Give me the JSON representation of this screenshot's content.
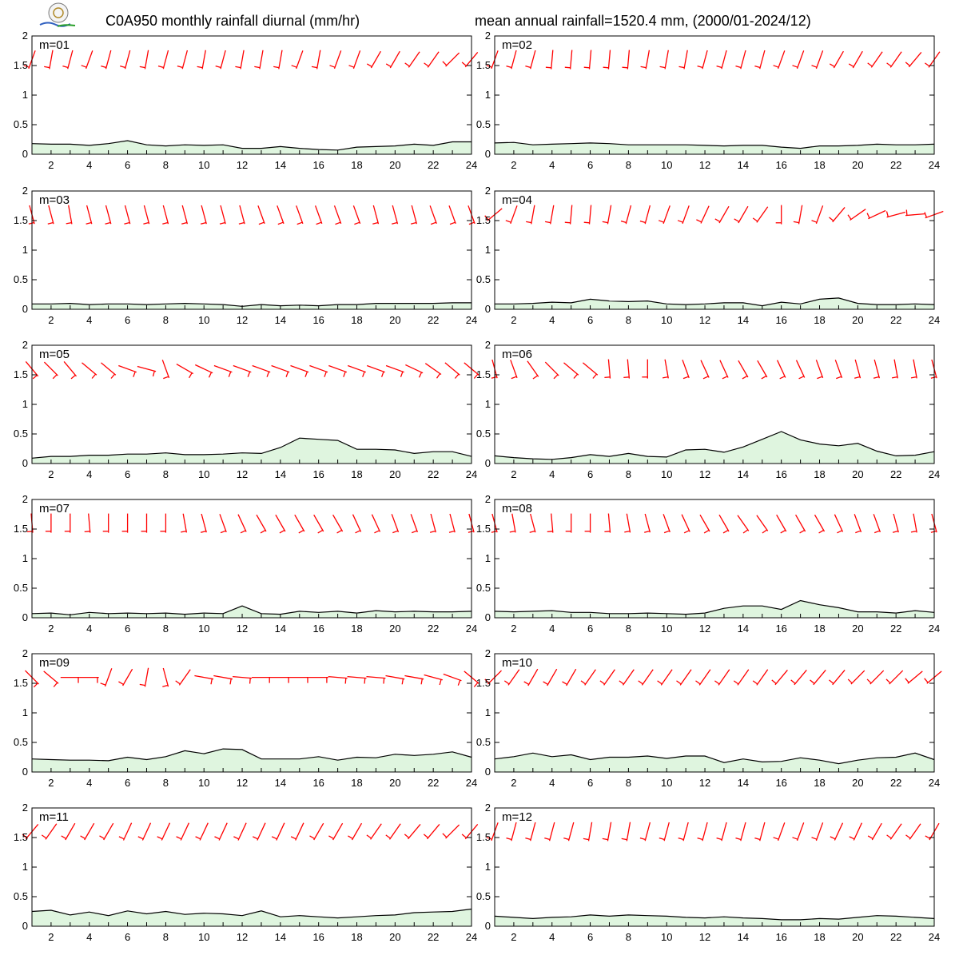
{
  "figure": {
    "title_left": "C0A950 monthly rainfall diurnal (mm/hr)",
    "title_right": "mean annual rainfall=1520.4 mm, (2000/01-2024/12)",
    "logo": {
      "icon": "lab-logo-icon"
    },
    "colors": {
      "rain_fill": "#dff5df",
      "rain_line": "#000000",
      "wind_barb": "#ff0000",
      "frame": "#000000"
    }
  },
  "chart_data": {
    "type": "area",
    "xlim": [
      1,
      24
    ],
    "ylim": [
      0,
      2
    ],
    "xticks": [
      "2",
      "4",
      "6",
      "8",
      "10",
      "12",
      "14",
      "16",
      "18",
      "20",
      "22",
      "24"
    ],
    "yticks": [
      "0",
      "0.5",
      "1",
      "1.5",
      "2"
    ],
    "grid": false,
    "panels": [
      {
        "label": "m=01",
        "values": [
          0.18,
          0.17,
          0.17,
          0.15,
          0.18,
          0.23,
          0.16,
          0.14,
          0.16,
          0.15,
          0.16,
          0.1,
          0.1,
          0.13,
          0.1,
          0.08,
          0.07,
          0.12,
          0.13,
          0.14,
          0.17,
          0.15,
          0.21,
          0.21
        ],
        "wind_dir": [
          200,
          190,
          195,
          200,
          195,
          195,
          190,
          195,
          195,
          190,
          195,
          190,
          190,
          190,
          200,
          190,
          200,
          200,
          210,
          210,
          215,
          215,
          225,
          220
        ]
      },
      {
        "label": "m=02",
        "values": [
          0.19,
          0.2,
          0.16,
          0.17,
          0.18,
          0.19,
          0.18,
          0.16,
          0.16,
          0.16,
          0.16,
          0.15,
          0.14,
          0.15,
          0.15,
          0.12,
          0.1,
          0.14,
          0.14,
          0.15,
          0.17,
          0.16,
          0.16,
          0.17
        ],
        "wind_dir": [
          200,
          195,
          195,
          185,
          185,
          185,
          185,
          185,
          190,
          190,
          190,
          195,
          195,
          195,
          195,
          200,
          200,
          200,
          210,
          210,
          215,
          215,
          220,
          215
        ]
      },
      {
        "label": "m=03",
        "values": [
          0.09,
          0.09,
          0.1,
          0.08,
          0.09,
          0.09,
          0.08,
          0.09,
          0.1,
          0.09,
          0.08,
          0.05,
          0.08,
          0.06,
          0.07,
          0.06,
          0.08,
          0.08,
          0.1,
          0.1,
          0.1,
          0.1,
          0.11,
          0.11
        ],
        "wind_dir": [
          165,
          165,
          170,
          165,
          165,
          165,
          165,
          165,
          165,
          165,
          165,
          165,
          160,
          160,
          160,
          160,
          160,
          160,
          165,
          165,
          165,
          160,
          160,
          160
        ]
      },
      {
        "label": "m=04",
        "values": [
          0.09,
          0.09,
          0.1,
          0.12,
          0.11,
          0.17,
          0.14,
          0.13,
          0.14,
          0.09,
          0.08,
          0.09,
          0.11,
          0.11,
          0.06,
          0.12,
          0.09,
          0.17,
          0.19,
          0.1,
          0.08,
          0.08,
          0.09,
          0.08
        ],
        "wind_dir": [
          230,
          200,
          190,
          190,
          185,
          185,
          190,
          195,
          195,
          200,
          200,
          205,
          210,
          210,
          215,
          180,
          190,
          200,
          220,
          235,
          245,
          255,
          265,
          250
        ]
      },
      {
        "label": "m=05",
        "values": [
          0.09,
          0.12,
          0.12,
          0.14,
          0.14,
          0.16,
          0.16,
          0.18,
          0.15,
          0.15,
          0.16,
          0.18,
          0.17,
          0.27,
          0.43,
          0.41,
          0.39,
          0.24,
          0.24,
          0.23,
          0.17,
          0.2,
          0.2,
          0.12
        ],
        "wind_dir": [
          140,
          135,
          140,
          130,
          130,
          110,
          105,
          160,
          120,
          115,
          110,
          110,
          110,
          110,
          110,
          110,
          110,
          110,
          110,
          110,
          115,
          125,
          130,
          130
        ]
      },
      {
        "label": "m=06",
        "values": [
          0.13,
          0.1,
          0.08,
          0.07,
          0.1,
          0.15,
          0.12,
          0.17,
          0.12,
          0.11,
          0.23,
          0.24,
          0.19,
          0.28,
          0.41,
          0.54,
          0.4,
          0.33,
          0.3,
          0.34,
          0.21,
          0.13,
          0.14,
          0.2
        ],
        "wind_dir": [
          165,
          160,
          145,
          135,
          130,
          130,
          175,
          175,
          180,
          170,
          160,
          155,
          155,
          150,
          150,
          155,
          155,
          160,
          160,
          165,
          165,
          170,
          170,
          165
        ]
      },
      {
        "label": "m=07",
        "values": [
          0.07,
          0.08,
          0.05,
          0.09,
          0.07,
          0.08,
          0.07,
          0.08,
          0.06,
          0.08,
          0.07,
          0.2,
          0.07,
          0.06,
          0.11,
          0.09,
          0.11,
          0.08,
          0.12,
          0.1,
          0.11,
          0.1,
          0.1,
          0.11
        ],
        "wind_dir": [
          175,
          180,
          180,
          175,
          180,
          180,
          180,
          180,
          170,
          165,
          160,
          155,
          150,
          150,
          150,
          150,
          150,
          155,
          155,
          160,
          160,
          165,
          165,
          165
        ]
      },
      {
        "label": "m=08",
        "values": [
          0.11,
          0.1,
          0.11,
          0.12,
          0.09,
          0.09,
          0.07,
          0.07,
          0.08,
          0.07,
          0.06,
          0.08,
          0.16,
          0.2,
          0.2,
          0.14,
          0.29,
          0.22,
          0.17,
          0.1,
          0.1,
          0.08,
          0.12,
          0.09
        ],
        "wind_dir": [
          165,
          170,
          165,
          175,
          180,
          180,
          175,
          170,
          165,
          160,
          155,
          150,
          150,
          145,
          145,
          150,
          150,
          150,
          155,
          160,
          160,
          165,
          170,
          165
        ]
      },
      {
        "label": "m=09",
        "values": [
          0.22,
          0.21,
          0.2,
          0.2,
          0.19,
          0.25,
          0.21,
          0.26,
          0.36,
          0.31,
          0.39,
          0.38,
          0.22,
          0.22,
          0.22,
          0.26,
          0.2,
          0.25,
          0.24,
          0.3,
          0.28,
          0.3,
          0.34,
          0.25
        ],
        "wind_dir": [
          135,
          130,
          90,
          90,
          200,
          210,
          190,
          165,
          215,
          100,
          100,
          95,
          90,
          90,
          90,
          90,
          95,
          95,
          95,
          100,
          100,
          105,
          110,
          130
        ]
      },
      {
        "label": "m=10",
        "values": [
          0.22,
          0.26,
          0.32,
          0.26,
          0.29,
          0.21,
          0.25,
          0.25,
          0.27,
          0.23,
          0.27,
          0.27,
          0.16,
          0.22,
          0.17,
          0.18,
          0.24,
          0.2,
          0.14,
          0.2,
          0.24,
          0.25,
          0.32,
          0.21
        ],
        "wind_dir": [
          225,
          215,
          210,
          210,
          210,
          215,
          215,
          215,
          215,
          215,
          215,
          215,
          215,
          215,
          215,
          220,
          220,
          220,
          220,
          225,
          225,
          225,
          230,
          230
        ]
      },
      {
        "label": "m=11",
        "values": [
          0.25,
          0.27,
          0.19,
          0.24,
          0.18,
          0.26,
          0.21,
          0.25,
          0.2,
          0.22,
          0.21,
          0.18,
          0.26,
          0.16,
          0.18,
          0.16,
          0.14,
          0.16,
          0.18,
          0.19,
          0.23,
          0.24,
          0.25,
          0.29
        ],
        "wind_dir": [
          220,
          215,
          210,
          210,
          210,
          205,
          205,
          205,
          205,
          205,
          205,
          205,
          205,
          205,
          205,
          210,
          210,
          210,
          215,
          215,
          220,
          220,
          225,
          220
        ]
      },
      {
        "label": "m=12",
        "values": [
          0.17,
          0.15,
          0.13,
          0.15,
          0.16,
          0.19,
          0.17,
          0.19,
          0.18,
          0.17,
          0.15,
          0.14,
          0.16,
          0.14,
          0.13,
          0.11,
          0.11,
          0.13,
          0.12,
          0.15,
          0.18,
          0.17,
          0.15,
          0.13
        ],
        "wind_dir": [
          200,
          195,
          195,
          195,
          195,
          190,
          190,
          190,
          195,
          195,
          195,
          195,
          195,
          195,
          195,
          200,
          200,
          200,
          205,
          205,
          210,
          215,
          215,
          210
        ]
      }
    ]
  }
}
